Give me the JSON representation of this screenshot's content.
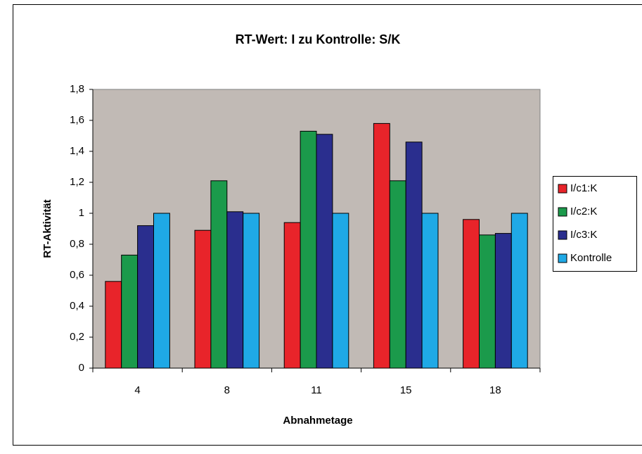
{
  "chart_data": {
    "type": "bar",
    "title": "RT-Wert: I zu Kontrolle: S/K",
    "xlabel": "Abnahmetage",
    "ylabel": "RT-Aktivität",
    "categories": [
      "4",
      "8",
      "11",
      "15",
      "18"
    ],
    "series": [
      {
        "name": "I/c1:K",
        "color": "#e8242a",
        "values": [
          0.56,
          0.89,
          0.94,
          1.58,
          0.96
        ]
      },
      {
        "name": "I/c2:K",
        "color": "#1b9a4b",
        "values": [
          0.73,
          1.21,
          1.53,
          1.21,
          0.86
        ]
      },
      {
        "name": "I/c3:K",
        "color": "#2a2e8e",
        "values": [
          0.92,
          1.01,
          1.51,
          1.46,
          0.87
        ]
      },
      {
        "name": "Kontrolle",
        "color": "#1fa9e6",
        "values": [
          1,
          1,
          1,
          1,
          1
        ]
      }
    ],
    "ylim": [
      0,
      1.8
    ],
    "yticks": [
      0,
      {
        "value": 0.2,
        "label": "0,2"
      },
      {
        "value": 0.4,
        "label": "0,4"
      },
      {
        "value": 0.6,
        "label": "0,6"
      },
      {
        "value": 0.8,
        "label": "0,8"
      },
      1,
      {
        "value": 1.2,
        "label": "1,2"
      },
      {
        "value": 1.4,
        "label": "1,4"
      },
      {
        "value": 1.6,
        "label": "1,6"
      },
      {
        "value": 1.8,
        "label": "1,8"
      }
    ],
    "plot_background": "#c1bab5",
    "legend": "right"
  }
}
